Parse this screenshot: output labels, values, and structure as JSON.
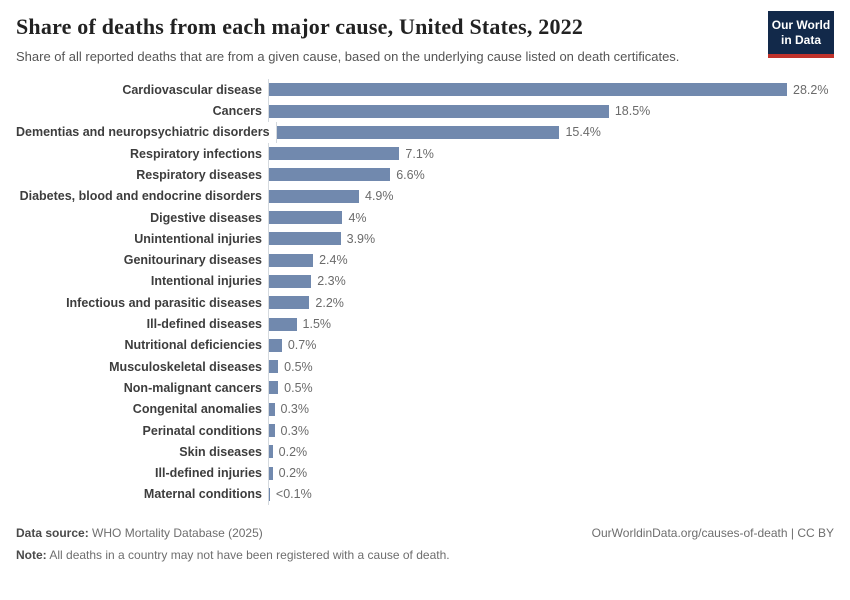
{
  "header": {
    "title": "Share of deaths from each major cause, United States, 2022",
    "subtitle": "Share of all reported deaths that are from a given cause, based on the underlying cause listed on death certificates.",
    "logo_line1": "Our World",
    "logo_line2": "in Data"
  },
  "chart_data": {
    "type": "bar",
    "orientation": "horizontal",
    "title": "Share of deaths from each major cause, United States, 2022",
    "xlabel": "",
    "ylabel": "",
    "xlim": [
      0,
      28.2
    ],
    "grid": false,
    "categories": [
      "Cardiovascular disease",
      "Cancers",
      "Dementias and neuropsychiatric disorders",
      "Respiratory infections",
      "Respiratory diseases",
      "Diabetes, blood and endocrine disorders",
      "Digestive diseases",
      "Unintentional injuries",
      "Genitourinary diseases",
      "Intentional injuries",
      "Infectious and parasitic diseases",
      "Ill-defined diseases",
      "Nutritional deficiencies",
      "Musculoskeletal diseases",
      "Non-malignant cancers",
      "Congenital anomalies",
      "Perinatal conditions",
      "Skin diseases",
      "Ill-defined injuries",
      "Maternal conditions"
    ],
    "values": [
      28.2,
      18.5,
      15.4,
      7.1,
      6.6,
      4.9,
      4,
      3.9,
      2.4,
      2.3,
      2.2,
      1.5,
      0.7,
      0.5,
      0.5,
      0.3,
      0.3,
      0.2,
      0.2,
      0.05
    ],
    "value_labels": [
      "28.2%",
      "18.5%",
      "15.4%",
      "7.1%",
      "6.6%",
      "4.9%",
      "4%",
      "3.9%",
      "2.4%",
      "2.3%",
      "2.2%",
      "1.5%",
      "0.7%",
      "0.5%",
      "0.5%",
      "0.3%",
      "0.3%",
      "0.2%",
      "0.2%",
      "<0.1%"
    ]
  },
  "footer": {
    "data_source_label": "Data source:",
    "data_source_text": " WHO Mortality Database (2025)",
    "note_label": "Note:",
    "note_text": " All deaths in a country may not have been registered with a cause of death.",
    "credit": "OurWorldinData.org/causes-of-death | CC BY"
  },
  "colors": {
    "bar": "#7189ae",
    "logo_navy": "#12294a",
    "logo_red": "#c0322b"
  }
}
